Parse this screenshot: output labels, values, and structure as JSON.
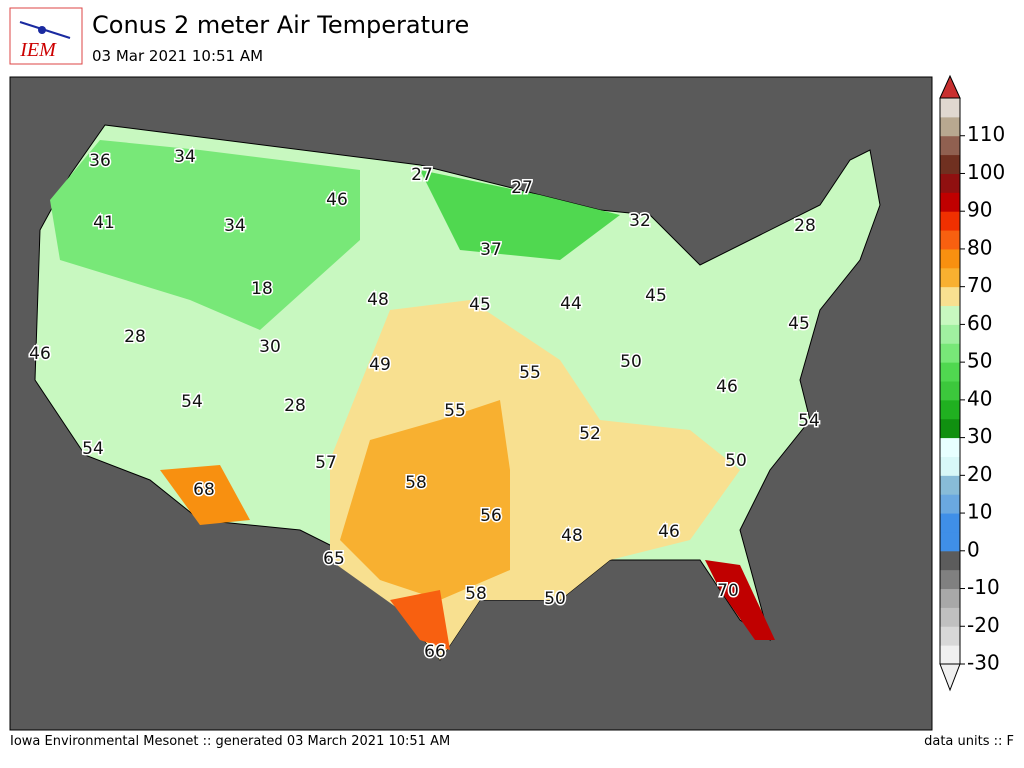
{
  "header": {
    "title": "Conus 2 meter Air Temperature",
    "subtitle": "03 Mar 2021 10:51 AM",
    "logo": "IEM"
  },
  "footer": {
    "left": "Iowa Environmental Mesonet :: generated 03 March 2021 10:51 AM",
    "right": "data units :: F"
  },
  "colorbar": {
    "lim": [
      -30,
      120
    ],
    "ticks": [
      -30,
      -20,
      -10,
      0,
      10,
      20,
      30,
      40,
      50,
      60,
      70,
      80,
      90,
      100,
      110
    ],
    "colors": [
      "#f0f0f0",
      "#d8d8d8",
      "#c0c0c0",
      "#a8a8a8",
      "#808080",
      "#5c5c5c",
      "#3f8fe8",
      "#3f8fe8",
      "#6aa8e0",
      "#88bcd8",
      "#d8f8f8",
      "#e8ffff",
      "#109010",
      "#20b020",
      "#3cc83c",
      "#50d850",
      "#78e878",
      "#a0f0a0",
      "#c8f8c0",
      "#f8e090",
      "#f8b030",
      "#f89010",
      "#f86010",
      "#f03000",
      "#c00000",
      "#901010",
      "#703020",
      "#906050",
      "#b8a890",
      "#e0d8d0"
    ]
  },
  "map": {
    "labels": [
      36,
      34,
      27,
      27,
      32,
      28,
      41,
      34,
      46,
      37,
      18,
      48,
      45,
      44,
      45,
      45,
      46,
      28,
      30,
      49,
      55,
      50,
      46,
      54,
      28,
      55,
      52,
      54,
      54,
      57,
      58,
      50,
      68,
      56,
      48,
      46,
      65,
      58,
      50,
      70,
      66
    ]
  }
}
